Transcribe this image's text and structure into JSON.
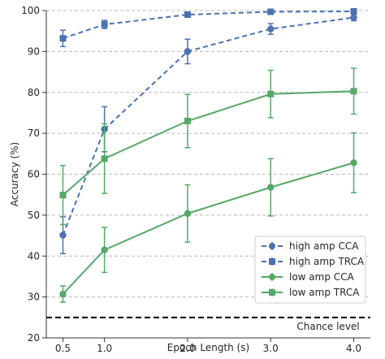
{
  "chart_data": {
    "type": "line",
    "xlabel": "Epoch Length (s)",
    "ylabel": "Accuracy (%)",
    "x": [
      0.5,
      1.0,
      2.0,
      3.0,
      4.0
    ],
    "x_tick_labels": [
      "0.5",
      "1.0",
      "2.0",
      "3.0",
      "4.0"
    ],
    "xlim": [
      0.3,
      4.2
    ],
    "ylim": [
      20,
      100
    ],
    "y_ticks": [
      20,
      30,
      40,
      50,
      60,
      70,
      80,
      90,
      100
    ],
    "y_tick_labels": [
      "20",
      "30",
      "40",
      "50",
      "60",
      "70",
      "80",
      "90",
      "100"
    ],
    "grid": "horizontal dashed",
    "legend_position": "lower-right",
    "series": [
      {
        "name": "high amp CCA",
        "color": "#4c72b0",
        "linestyle": "dashed",
        "marker": "circle",
        "values": [
          45.1,
          71.0,
          90.0,
          95.5,
          98.3
        ],
        "err": [
          4.5,
          5.5,
          3.0,
          1.3,
          0.8
        ]
      },
      {
        "name": "high amp TRCA",
        "color": "#4c72b0",
        "linestyle": "dashed",
        "marker": "square",
        "values": [
          93.2,
          96.6,
          99.0,
          99.7,
          99.8
        ],
        "err": [
          2.0,
          1.0,
          0.4,
          0.2,
          0.2
        ]
      },
      {
        "name": "low amp CCA",
        "color": "#55a868",
        "linestyle": "solid",
        "marker": "circle",
        "values": [
          30.7,
          41.5,
          50.4,
          56.8,
          62.8
        ],
        "err": [
          2.0,
          5.5,
          7.0,
          7.0,
          7.3
        ]
      },
      {
        "name": "low amp TRCA",
        "color": "#55a868",
        "linestyle": "solid",
        "marker": "square",
        "values": [
          54.9,
          63.8,
          73.0,
          79.6,
          80.3
        ],
        "err": [
          7.2,
          8.5,
          6.5,
          5.8,
          5.6
        ]
      }
    ],
    "reference_line": {
      "label": "Chance level",
      "value": 25,
      "color": "#000000",
      "linestyle": "dashed"
    }
  }
}
